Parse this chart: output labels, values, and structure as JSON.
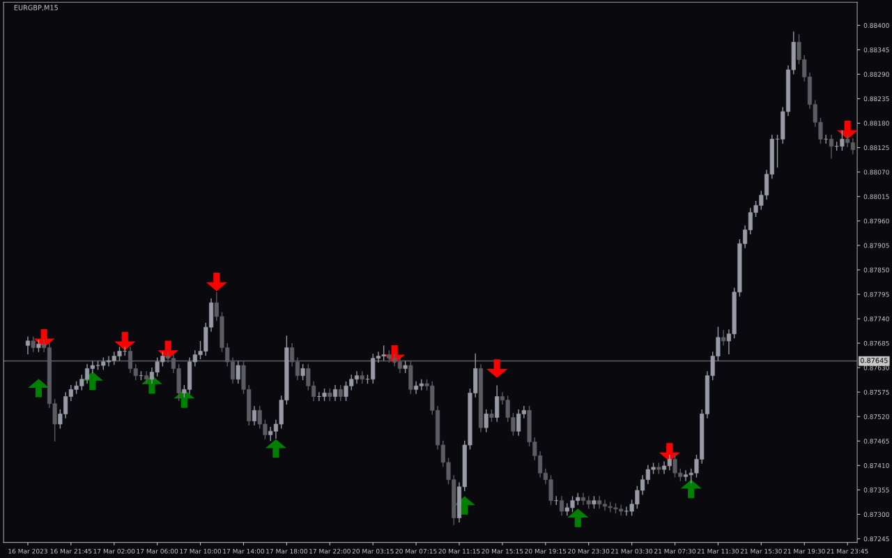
{
  "chart_data": {
    "type": "candlestick",
    "title": "EURGBP,M15",
    "categories": [
      "16 Mar 2023",
      null,
      null,
      null,
      null,
      null,
      null,
      null,
      "16 Mar 21:45",
      null,
      null,
      null,
      null,
      null,
      null,
      null,
      "17 Mar 02:00",
      null,
      null,
      null,
      null,
      null,
      null,
      null,
      "17 Mar 06:00",
      null,
      null,
      null,
      null,
      null,
      null,
      null,
      "17 Mar 10:00",
      null,
      null,
      null,
      null,
      null,
      null,
      null,
      "17 Mar 14:00",
      null,
      null,
      null,
      null,
      null,
      null,
      null,
      "17 Mar 18:00",
      null,
      null,
      null,
      null,
      null,
      null,
      null,
      "17 Mar 22:00",
      null,
      null,
      null,
      null,
      null,
      null,
      null,
      "20 Mar 03:15",
      null,
      null,
      null,
      null,
      null,
      null,
      null,
      "20 Mar 07:15",
      null,
      null,
      null,
      null,
      null,
      null,
      null,
      "20 Mar 11:15",
      null,
      null,
      null,
      null,
      null,
      null,
      null,
      "20 Mar 15:15",
      null,
      null,
      null,
      null,
      null,
      null,
      null,
      "20 Mar 19:15",
      null,
      null,
      null,
      null,
      null,
      null,
      null,
      "20 Mar 23:30",
      null,
      null,
      null,
      null,
      null,
      null,
      null,
      "21 Mar 03:30",
      null,
      null,
      null,
      null,
      null,
      null,
      null,
      "21 Mar 07:30",
      null,
      null,
      null,
      null,
      null,
      null,
      null,
      "21 Mar 11:30",
      null,
      null,
      null,
      null,
      null,
      null,
      null,
      "21 Mar 15:30",
      null,
      null,
      null,
      null,
      null,
      null,
      null,
      "21 Mar 19:30",
      null,
      null,
      null,
      null,
      null,
      null,
      null,
      "21 Mar 23:45",
      null
    ],
    "colors": [
      "#9a9aa6",
      "#5c5c62",
      "#9a9aa6",
      "#5c5c62",
      "#5c5c62",
      "#5c5c62",
      "#9a9aa6",
      "#9a9aa6",
      "#9a9aa6",
      "#9a9aa6",
      "#9a9aa6",
      "#9a9aa6",
      "#9a9aa6",
      "#9a9aa6",
      "#9a9aa6",
      "#9a9aa6",
      "#9a9aa6",
      "#9a9aa6",
      "#9a9aa6",
      "#5c5c62",
      "#5c5c62",
      "#9a9aa6",
      "#5c5c62",
      "#9a9aa6",
      "#9a9aa6",
      "#9a9aa6",
      "#5c5c62",
      "#5c5c62",
      "#5c5c62",
      "#9a9aa6",
      "#9a9aa6",
      "#9a9aa6",
      "#9a9aa6",
      "#9a9aa6",
      "#9a9aa6",
      "#5c5c62",
      "#5c5c62",
      "#5c5c62",
      "#5c5c62",
      "#9a9aa6",
      "#5c5c62",
      "#5c5c62",
      "#9a9aa6",
      "#5c5c62",
      "#5c5c62",
      "#9a9aa6",
      "#9a9aa6",
      "#9a9aa6",
      "#9a9aa6",
      "#5c5c62",
      "#5c5c62",
      "#9a9aa6",
      "#5c5c62",
      "#5c5c62",
      "#9a9aa6",
      "#9a9aa6",
      "#5c5c62",
      "#9a9aa6",
      "#5c5c62",
      "#9a9aa6",
      "#9a9aa6",
      "#9a9aa6",
      "#5c5c62",
      "#9a9aa6",
      "#9a9aa6",
      "#9a9aa6",
      "#9a9aa6",
      "#5c5c62",
      "#5c5c62",
      "#5c5c62",
      "#9a9aa6",
      "#5c5c62",
      "#9a9aa6",
      "#9a9aa6",
      "#5c5c62",
      "#5c5c62",
      "#5c5c62",
      "#5c5c62",
      "#5c5c62",
      "#5c5c62",
      "#9a9aa6",
      "#9a9aa6",
      "#9a9aa6",
      "#9a9aa6",
      "#5c5c62",
      "#9a9aa6",
      "#5c5c62",
      "#9a9aa6",
      "#5c5c62",
      "#5c5c62",
      "#5c5c62",
      "#9a9aa6",
      "#9a9aa6",
      "#5c5c62",
      "#5c5c62",
      "#5c5c62",
      "#5c5c62",
      "#5c5c62",
      "#9a9aa6",
      "#5c5c62",
      "#9a9aa6",
      "#9a9aa6",
      "#9a9aa6",
      "#5c5c62",
      "#5c5c62",
      "#9a9aa6",
      "#5c5c62",
      "#5c5c62",
      "#5c5c62",
      "#5c5c62",
      "#5c5c62",
      "#9a9aa6",
      "#9a9aa6",
      "#9a9aa6",
      "#9a9aa6",
      "#9a9aa6",
      "#9a9aa6",
      "#5c5c62",
      "#9a9aa6",
      "#9a9aa6",
      "#5c5c62",
      "#5c5c62",
      "#9a9aa6",
      "#9a9aa6",
      "#9a9aa6",
      "#9a9aa6",
      "#9a9aa6",
      "#9a9aa6",
      "#9a9aa6",
      "#5c5c62",
      "#9a9aa6",
      "#9a9aa6",
      "#9a9aa6",
      "#9a9aa6",
      "#9a9aa6",
      "#9a9aa6",
      "#9a9aa6",
      "#9a9aa6",
      "#9a9aa6",
      "#9a9aa6",
      "#9a9aa6",
      "#9a9aa6",
      "#9a9aa6",
      "#5c5c62",
      "#5c5c62",
      "#5c5c62",
      "#5c5c62",
      "#5c5c62",
      "#9a9aa6",
      "#5c5c62",
      "#9a9aa6",
      "#9a9aa6",
      "#5c5c62",
      "#5c5c62"
    ],
    "ohlc": [
      [
        0.8768,
        0.877,
        0.8766,
        0.8769
      ],
      [
        0.8769,
        0.877,
        0.87665,
        0.87675
      ],
      [
        0.87675,
        0.87693,
        0.87665,
        0.87683
      ],
      [
        0.87683,
        0.87693,
        0.87665,
        0.87675
      ],
      [
        0.87675,
        0.87685,
        0.87539,
        0.87549
      ],
      [
        0.87549,
        0.87559,
        0.87464,
        0.87503
      ],
      [
        0.87503,
        0.87536,
        0.87493,
        0.87526
      ],
      [
        0.87526,
        0.87575,
        0.87516,
        0.87565
      ],
      [
        0.87565,
        0.87591,
        0.87555,
        0.87581
      ],
      [
        0.87581,
        0.87599,
        0.87571,
        0.87589
      ],
      [
        0.87589,
        0.87614,
        0.87579,
        0.87604
      ],
      [
        0.87604,
        0.87638,
        0.87594,
        0.87628
      ],
      [
        0.87628,
        0.87645,
        0.87618,
        0.87635
      ],
      [
        0.87635,
        0.87645,
        0.87625,
        0.87635
      ],
      [
        0.87635,
        0.87653,
        0.87625,
        0.87643
      ],
      [
        0.87643,
        0.87656,
        0.87633,
        0.87646
      ],
      [
        0.87646,
        0.87666,
        0.87636,
        0.87656
      ],
      [
        0.87656,
        0.87677,
        0.87646,
        0.87667
      ],
      [
        0.87667,
        0.87677,
        0.87657,
        0.87667
      ],
      [
        0.87667,
        0.87677,
        0.87618,
        0.87628
      ],
      [
        0.87628,
        0.87638,
        0.87602,
        0.87612
      ],
      [
        0.87612,
        0.87622,
        0.87602,
        0.87612
      ],
      [
        0.87612,
        0.87622,
        0.87594,
        0.87604
      ],
      [
        0.87604,
        0.8763,
        0.87594,
        0.8762
      ],
      [
        0.8762,
        0.87653,
        0.8761,
        0.87643
      ],
      [
        0.87643,
        0.87666,
        0.87633,
        0.87656
      ],
      [
        0.87656,
        0.87666,
        0.87641,
        0.87651
      ],
      [
        0.87651,
        0.87661,
        0.87618,
        0.87628
      ],
      [
        0.87628,
        0.87638,
        0.87555,
        0.87573
      ],
      [
        0.87573,
        0.87591,
        0.87563,
        0.87581
      ],
      [
        0.87581,
        0.87653,
        0.87571,
        0.87643
      ],
      [
        0.87643,
        0.87669,
        0.87633,
        0.87659
      ],
      [
        0.87659,
        0.8769,
        0.87649,
        0.87667
      ],
      [
        0.87667,
        0.87731,
        0.87657,
        0.87721
      ],
      [
        0.87721,
        0.87786,
        0.87711,
        0.87776
      ],
      [
        0.87776,
        0.878,
        0.87735,
        0.87745
      ],
      [
        0.87745,
        0.87755,
        0.87665,
        0.87675
      ],
      [
        0.87675,
        0.87685,
        0.87633,
        0.87643
      ],
      [
        0.87643,
        0.87653,
        0.87594,
        0.87604
      ],
      [
        0.87604,
        0.87645,
        0.87594,
        0.87635
      ],
      [
        0.87635,
        0.87645,
        0.87571,
        0.87581
      ],
      [
        0.87581,
        0.87591,
        0.875,
        0.8751
      ],
      [
        0.8751,
        0.87544,
        0.875,
        0.87534
      ],
      [
        0.87534,
        0.87544,
        0.87493,
        0.87503
      ],
      [
        0.87503,
        0.87513,
        0.87469,
        0.87479
      ],
      [
        0.87479,
        0.87497,
        0.87465,
        0.87487
      ],
      [
        0.87487,
        0.87513,
        0.8747,
        0.87503
      ],
      [
        0.87503,
        0.87567,
        0.87493,
        0.87557
      ],
      [
        0.87557,
        0.87702,
        0.87547,
        0.87675
      ],
      [
        0.87675,
        0.87685,
        0.87633,
        0.87643
      ],
      [
        0.87643,
        0.87653,
        0.87602,
        0.87612
      ],
      [
        0.87612,
        0.87638,
        0.87602,
        0.87628
      ],
      [
        0.87628,
        0.87638,
        0.87579,
        0.87589
      ],
      [
        0.87589,
        0.87599,
        0.87555,
        0.87565
      ],
      [
        0.87565,
        0.87575,
        0.87555,
        0.87565
      ],
      [
        0.87565,
        0.87583,
        0.87555,
        0.87573
      ],
      [
        0.87573,
        0.87583,
        0.87555,
        0.87565
      ],
      [
        0.87565,
        0.87591,
        0.87555,
        0.87581
      ],
      [
        0.87581,
        0.87591,
        0.87555,
        0.87565
      ],
      [
        0.87565,
        0.87599,
        0.87555,
        0.87589
      ],
      [
        0.87589,
        0.87614,
        0.87579,
        0.87604
      ],
      [
        0.87604,
        0.87622,
        0.87594,
        0.87612
      ],
      [
        0.87612,
        0.87622,
        0.87594,
        0.87604
      ],
      [
        0.87604,
        0.87614,
        0.87594,
        0.87604
      ],
      [
        0.87604,
        0.87661,
        0.87594,
        0.87651
      ],
      [
        0.87651,
        0.87666,
        0.87641,
        0.87656
      ],
      [
        0.87656,
        0.8768,
        0.87646,
        0.87659
      ],
      [
        0.87659,
        0.87669,
        0.87641,
        0.87651
      ],
      [
        0.87651,
        0.87661,
        0.87633,
        0.87643
      ],
      [
        0.87643,
        0.87653,
        0.87618,
        0.87628
      ],
      [
        0.87628,
        0.87645,
        0.87618,
        0.87635
      ],
      [
        0.87635,
        0.87645,
        0.87571,
        0.87581
      ],
      [
        0.87581,
        0.87599,
        0.87571,
        0.87589
      ],
      [
        0.87589,
        0.87604,
        0.87579,
        0.87594
      ],
      [
        0.87594,
        0.87604,
        0.87579,
        0.87589
      ],
      [
        0.87589,
        0.87599,
        0.87524,
        0.87534
      ],
      [
        0.87534,
        0.87544,
        0.87446,
        0.87456
      ],
      [
        0.87456,
        0.87466,
        0.87407,
        0.87417
      ],
      [
        0.87417,
        0.87427,
        0.87368,
        0.87378
      ],
      [
        0.87378,
        0.87388,
        0.87276,
        0.87292
      ],
      [
        0.87292,
        0.87372,
        0.87282,
        0.87362
      ],
      [
        0.87362,
        0.87466,
        0.87352,
        0.87456
      ],
      [
        0.87456,
        0.87583,
        0.87446,
        0.87573
      ],
      [
        0.87573,
        0.87662,
        0.87563,
        0.87628
      ],
      [
        0.87628,
        0.87638,
        0.87485,
        0.87495
      ],
      [
        0.87495,
        0.87536,
        0.87485,
        0.87526
      ],
      [
        0.87526,
        0.87536,
        0.87508,
        0.87518
      ],
      [
        0.87518,
        0.8759,
        0.87508,
        0.87565
      ],
      [
        0.87565,
        0.87575,
        0.87547,
        0.87557
      ],
      [
        0.87557,
        0.87567,
        0.87508,
        0.87518
      ],
      [
        0.87518,
        0.87528,
        0.87477,
        0.87487
      ],
      [
        0.87487,
        0.87536,
        0.87477,
        0.87526
      ],
      [
        0.87526,
        0.87544,
        0.87516,
        0.87534
      ],
      [
        0.87534,
        0.87544,
        0.87453,
        0.87463
      ],
      [
        0.87463,
        0.87473,
        0.87422,
        0.87432
      ],
      [
        0.87432,
        0.87442,
        0.87383,
        0.87393
      ],
      [
        0.87393,
        0.87403,
        0.87368,
        0.87378
      ],
      [
        0.87378,
        0.87388,
        0.87321,
        0.87331
      ],
      [
        0.87331,
        0.87341,
        0.87321,
        0.87331
      ],
      [
        0.87331,
        0.87341,
        0.87297,
        0.87307
      ],
      [
        0.87307,
        0.87325,
        0.87297,
        0.87315
      ],
      [
        0.87315,
        0.87341,
        0.87305,
        0.87331
      ],
      [
        0.87331,
        0.87348,
        0.87321,
        0.87338
      ],
      [
        0.87338,
        0.87348,
        0.87321,
        0.87331
      ],
      [
        0.87331,
        0.87341,
        0.87313,
        0.87323
      ],
      [
        0.87323,
        0.87341,
        0.87313,
        0.87331
      ],
      [
        0.87331,
        0.87341,
        0.87313,
        0.87323
      ],
      [
        0.87323,
        0.87333,
        0.87308,
        0.87318
      ],
      [
        0.87318,
        0.87328,
        0.87305,
        0.87315
      ],
      [
        0.87315,
        0.87325,
        0.87302,
        0.87312
      ],
      [
        0.87312,
        0.87322,
        0.87297,
        0.87307
      ],
      [
        0.87307,
        0.87317,
        0.87297,
        0.87307
      ],
      [
        0.87307,
        0.87333,
        0.87297,
        0.87323
      ],
      [
        0.87323,
        0.87364,
        0.87313,
        0.87354
      ],
      [
        0.87354,
        0.87388,
        0.87344,
        0.87378
      ],
      [
        0.87378,
        0.87411,
        0.87368,
        0.87401
      ],
      [
        0.87401,
        0.87416,
        0.87391,
        0.87406
      ],
      [
        0.87406,
        0.87416,
        0.87391,
        0.87401
      ],
      [
        0.87401,
        0.87419,
        0.87391,
        0.87409
      ],
      [
        0.87409,
        0.87434,
        0.87399,
        0.87424
      ],
      [
        0.87424,
        0.87434,
        0.87383,
        0.87393
      ],
      [
        0.87393,
        0.87403,
        0.87375,
        0.87385
      ],
      [
        0.87385,
        0.87399,
        0.87375,
        0.87389
      ],
      [
        0.87389,
        0.87403,
        0.8737,
        0.87393
      ],
      [
        0.87393,
        0.87434,
        0.87383,
        0.87424
      ],
      [
        0.87424,
        0.87536,
        0.87414,
        0.87526
      ],
      [
        0.87526,
        0.87622,
        0.87516,
        0.87612
      ],
      [
        0.87612,
        0.87666,
        0.87602,
        0.87656
      ],
      [
        0.87656,
        0.87722,
        0.87646,
        0.87698
      ],
      [
        0.87698,
        0.87715,
        0.8768,
        0.8769
      ],
      [
        0.8769,
        0.87716,
        0.8766,
        0.87706
      ],
      [
        0.87706,
        0.8781,
        0.87696,
        0.878
      ],
      [
        0.878,
        0.87919,
        0.8779,
        0.87909
      ],
      [
        0.87909,
        0.8795,
        0.87899,
        0.8794
      ],
      [
        0.8794,
        0.87989,
        0.8793,
        0.87979
      ],
      [
        0.87979,
        0.88005,
        0.87969,
        0.87995
      ],
      [
        0.87995,
        0.88028,
        0.87985,
        0.88018
      ],
      [
        0.88018,
        0.88075,
        0.88008,
        0.88065
      ],
      [
        0.88065,
        0.88154,
        0.88055,
        0.88144
      ],
      [
        0.88144,
        0.88154,
        0.8808,
        0.88144
      ],
      [
        0.88144,
        0.88216,
        0.88134,
        0.88206
      ],
      [
        0.88206,
        0.8831,
        0.88196,
        0.883
      ],
      [
        0.883,
        0.88386,
        0.8829,
        0.88362
      ],
      [
        0.88362,
        0.8838,
        0.88313,
        0.88323
      ],
      [
        0.88323,
        0.88333,
        0.88274,
        0.88284
      ],
      [
        0.88284,
        0.88294,
        0.88212,
        0.88222
      ],
      [
        0.88222,
        0.88232,
        0.88172,
        0.88182
      ],
      [
        0.88182,
        0.88192,
        0.88134,
        0.88144
      ],
      [
        0.88144,
        0.88154,
        0.88134,
        0.88144
      ],
      [
        0.88144,
        0.88154,
        0.881,
        0.88128
      ],
      [
        0.88128,
        0.88138,
        0.88118,
        0.88128
      ],
      [
        0.88128,
        0.88164,
        0.88118,
        0.88144
      ],
      [
        0.88144,
        0.88154,
        0.88126,
        0.88136
      ],
      [
        0.88136,
        0.88146,
        0.8811,
        0.8812
      ]
    ],
    "series": [
      {
        "type": "scatter",
        "marker": "triangle",
        "color": "#008000",
        "values": [
          null,
          null,
          0.87584,
          null,
          null,
          null,
          null,
          null,
          null,
          null,
          null,
          null,
          0.876,
          null,
          null,
          null,
          null,
          null,
          null,
          null,
          null,
          null,
          null,
          0.87592,
          null,
          null,
          null,
          null,
          null,
          0.8756,
          null,
          null,
          null,
          null,
          null,
          null,
          null,
          null,
          null,
          null,
          null,
          null,
          null,
          null,
          null,
          null,
          0.87448,
          null,
          null,
          null,
          null,
          null,
          null,
          null,
          null,
          null,
          null,
          null,
          null,
          null,
          null,
          null,
          null,
          null,
          null,
          null,
          null,
          null,
          null,
          null,
          null,
          null,
          null,
          null,
          null,
          null,
          null,
          null,
          null,
          null,
          null,
          0.8732,
          null,
          null,
          null,
          null,
          null,
          null,
          null,
          null,
          null,
          null,
          null,
          null,
          null,
          null,
          null,
          null,
          null,
          null,
          null,
          null,
          0.87292,
          null,
          null,
          null,
          null,
          null,
          null,
          null,
          null,
          null,
          null,
          null,
          null,
          null,
          null,
          null,
          null,
          null,
          null,
          null,
          null,
          0.87357,
          null,
          null,
          null,
          null,
          null,
          null,
          null,
          null,
          null,
          null,
          null,
          null,
          null,
          null,
          null,
          null,
          null,
          null,
          null,
          null,
          null,
          null,
          null,
          null,
          null,
          null,
          null,
          null,
          null,
          null
        ]
      },
      {
        "type": "scatter",
        "marker": "triangle",
        "color": "#ff0000",
        "values": [
          null,
          null,
          null,
          0.87696,
          null,
          null,
          null,
          null,
          null,
          null,
          null,
          null,
          null,
          null,
          null,
          null,
          null,
          null,
          0.8769,
          null,
          null,
          null,
          null,
          null,
          null,
          null,
          0.8767,
          null,
          null,
          null,
          null,
          null,
          null,
          null,
          null,
          0.87823,
          null,
          null,
          null,
          null,
          null,
          null,
          null,
          null,
          null,
          null,
          null,
          null,
          null,
          null,
          null,
          null,
          null,
          null,
          null,
          null,
          null,
          null,
          null,
          null,
          null,
          null,
          null,
          null,
          null,
          null,
          null,
          null,
          0.8766,
          null,
          null,
          null,
          null,
          null,
          null,
          null,
          null,
          null,
          null,
          null,
          null,
          null,
          null,
          null,
          null,
          null,
          null,
          0.87628,
          null,
          null,
          null,
          null,
          null,
          null,
          null,
          null,
          null,
          null,
          null,
          null,
          null,
          null,
          null,
          null,
          null,
          null,
          null,
          null,
          null,
          null,
          null,
          null,
          null,
          null,
          null,
          null,
          null,
          null,
          null,
          0.8744,
          null,
          null,
          null,
          null,
          null,
          null,
          null,
          null,
          null,
          null,
          null,
          null,
          null,
          null,
          null,
          null,
          null,
          null,
          null,
          null,
          null,
          null,
          null,
          null,
          null,
          null,
          null,
          null,
          null,
          null,
          null,
          null,
          0.88165,
          null
        ]
      }
    ],
    "ylim": [
      0.87237,
      0.88452
    ],
    "yticks": [
      {
        "value": 0.884,
        "label": "0.88400"
      },
      {
        "value": 0.88345,
        "label": "0.88345"
      },
      {
        "value": 0.8829,
        "label": "0.88290"
      },
      {
        "value": 0.88235,
        "label": "0.88235"
      },
      {
        "value": 0.8818,
        "label": "0.88180"
      },
      {
        "value": 0.88125,
        "label": "0.88125"
      },
      {
        "value": 0.8807,
        "label": "0.88070"
      },
      {
        "value": 0.88015,
        "label": "0.88015"
      },
      {
        "value": 0.8796,
        "label": "0.87960"
      },
      {
        "value": 0.87905,
        "label": "0.87905"
      },
      {
        "value": 0.8785,
        "label": "0.87850"
      },
      {
        "value": 0.87795,
        "label": "0.87795"
      },
      {
        "value": 0.8774,
        "label": "0.87740"
      },
      {
        "value": 0.87685,
        "label": "0.87685"
      },
      {
        "value": 0.8763,
        "label": "0.87630"
      },
      {
        "value": 0.87575,
        "label": "0.87575"
      },
      {
        "value": 0.8752,
        "label": "0.87520"
      },
      {
        "value": 0.87465,
        "label": "0.87465"
      },
      {
        "value": 0.8741,
        "label": "0.87410"
      },
      {
        "value": 0.87355,
        "label": "0.87355"
      },
      {
        "value": 0.873,
        "label": "0.87300"
      },
      {
        "value": 0.87245,
        "label": "0.87245"
      }
    ],
    "ref_lines": [
      {
        "axis": "y",
        "value": 0.87645,
        "label": "0.87645",
        "color": "#5f5f66"
      }
    ]
  }
}
